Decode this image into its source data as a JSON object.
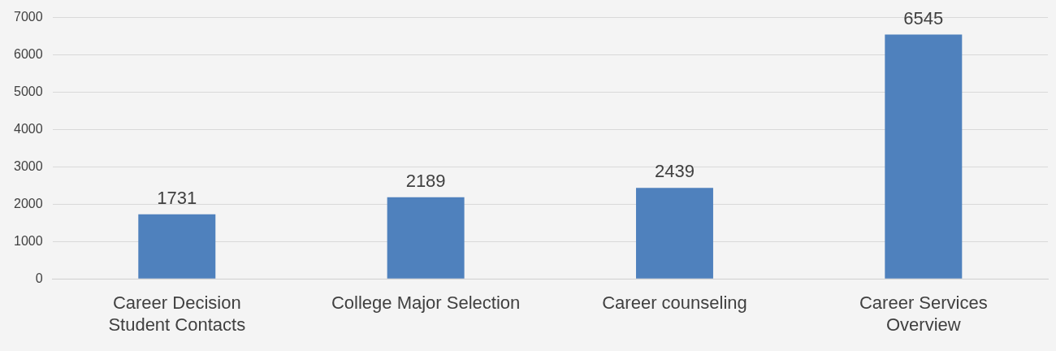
{
  "chart_data": {
    "type": "bar",
    "categories": [
      [
        "Career Decision",
        "Student Contacts"
      ],
      "College Major Selection",
      "Career counseling",
      [
        "Career Services",
        "Overview"
      ]
    ],
    "values": [
      1731,
      2189,
      2439,
      6545
    ],
    "color": "#4f81bd",
    "ylim": [
      0,
      7000
    ],
    "yticks": [
      0,
      1000,
      2000,
      3000,
      4000,
      5000,
      6000,
      7000
    ],
    "grid": "y",
    "data_labels": true
  }
}
